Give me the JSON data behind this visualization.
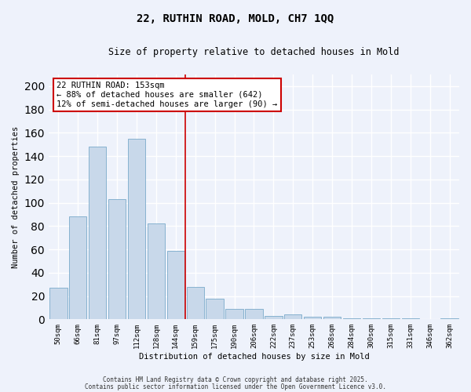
{
  "title1": "22, RUTHIN ROAD, MOLD, CH7 1QQ",
  "title2": "Size of property relative to detached houses in Mold",
  "xlabel": "Distribution of detached houses by size in Mold",
  "ylabel": "Number of detached properties",
  "bin_labels": [
    "50sqm",
    "66sqm",
    "81sqm",
    "97sqm",
    "112sqm",
    "128sqm",
    "144sqm",
    "159sqm",
    "175sqm",
    "190sqm",
    "206sqm",
    "222sqm",
    "237sqm",
    "253sqm",
    "268sqm",
    "284sqm",
    "300sqm",
    "315sqm",
    "331sqm",
    "346sqm",
    "362sqm"
  ],
  "bar_heights": [
    27,
    88,
    148,
    103,
    155,
    82,
    59,
    28,
    18,
    9,
    9,
    3,
    4,
    2,
    2,
    1,
    1,
    1,
    1,
    0,
    1
  ],
  "bar_color": "#c8d8ea",
  "bar_edge_color": "#7aaaca",
  "bar_edge_width": 0.6,
  "annotation_line1": "22 RUTHIN ROAD: 153sqm",
  "annotation_line2": "← 88% of detached houses are smaller (642)",
  "annotation_line3": "12% of semi-detached houses are larger (90) →",
  "annotation_box_color": "#ffffff",
  "annotation_box_edge_color": "#cc0000",
  "ylim": [
    0,
    210
  ],
  "yticks": [
    0,
    20,
    40,
    60,
    80,
    100,
    120,
    140,
    160,
    180,
    200
  ],
  "footnote1": "Contains HM Land Registry data © Crown copyright and database right 2025.",
  "footnote2": "Contains public sector information licensed under the Open Government Licence v3.0.",
  "bg_color": "#eef2fb",
  "plot_bg_color": "#eef2fb",
  "grid_color": "#ffffff",
  "red_line_color": "#cc0000",
  "red_line_index": 6.5
}
